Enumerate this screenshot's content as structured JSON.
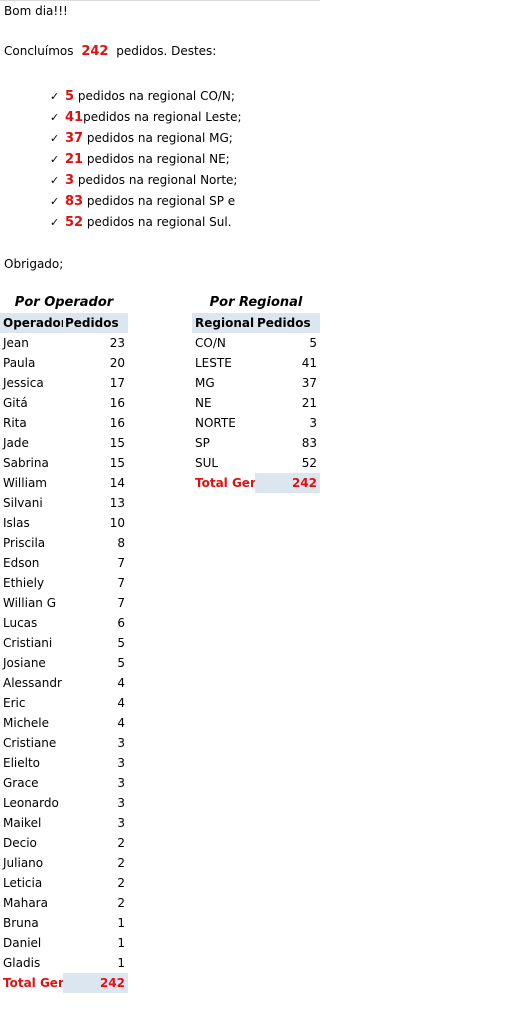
{
  "greeting": "Bom dia!!!",
  "summary": {
    "before": "Concluímos",
    "total": "242",
    "after": "pedidos. Destes:"
  },
  "bullets": [
    {
      "num": "5",
      "text": " pedidos na regional CO/N;"
    },
    {
      "num": "41",
      "text": "pedidos na regional Leste;"
    },
    {
      "num": "37",
      "text": " pedidos na regional MG;"
    },
    {
      "num": "21",
      "text": " pedidos na regional NE;"
    },
    {
      "num": "3",
      "text": " pedidos na regional Norte;"
    },
    {
      "num": "83",
      "text": " pedidos na regional SP e"
    },
    {
      "num": "52",
      "text": " pedidos na regional Sul."
    }
  ],
  "closing": "Obrigado;",
  "operator_table": {
    "title": "Por Operador",
    "headers": [
      "Operador",
      "Pedidos"
    ],
    "rows": [
      [
        "Jean",
        "23"
      ],
      [
        "Paula",
        "20"
      ],
      [
        "Jessica",
        "17"
      ],
      [
        "Gitá",
        "16"
      ],
      [
        "Rita",
        "16"
      ],
      [
        "Jade",
        "15"
      ],
      [
        "Sabrina",
        "15"
      ],
      [
        "William",
        "14"
      ],
      [
        "Silvani",
        "13"
      ],
      [
        "Islas",
        "10"
      ],
      [
        "Priscila",
        "8"
      ],
      [
        "Edson",
        "7"
      ],
      [
        "Ethiely",
        "7"
      ],
      [
        "Willian G",
        "7"
      ],
      [
        "Lucas",
        "6"
      ],
      [
        "Cristiani",
        "5"
      ],
      [
        "Josiane",
        "5"
      ],
      [
        "Alessandr",
        "4"
      ],
      [
        "Eric",
        "4"
      ],
      [
        "Michele",
        "4"
      ],
      [
        "Cristiane",
        "3"
      ],
      [
        "Elielto",
        "3"
      ],
      [
        "Grace",
        "3"
      ],
      [
        "Leonardo",
        "3"
      ],
      [
        "Maikel",
        "3"
      ],
      [
        "Decio",
        "2"
      ],
      [
        "Juliano",
        "2"
      ],
      [
        "Leticia",
        "2"
      ],
      [
        "Mahara",
        "2"
      ],
      [
        "Bruna",
        "1"
      ],
      [
        "Daniel",
        "1"
      ],
      [
        "Gladis",
        "1"
      ]
    ],
    "total_label": "Total Gera",
    "total_value": "242"
  },
  "regional_table": {
    "title": "Por Regional",
    "headers": [
      "Regional",
      "Pedidos"
    ],
    "rows": [
      [
        "CO/N",
        "5"
      ],
      [
        "LESTE",
        "41"
      ],
      [
        "MG",
        "37"
      ],
      [
        "NE",
        "21"
      ],
      [
        "NORTE",
        "3"
      ],
      [
        "SP",
        "83"
      ],
      [
        "SUL",
        "52"
      ]
    ],
    "total_label": "Total Gera",
    "total_value": "242"
  },
  "colors": {
    "accent_red": "#e01010",
    "header_fill": "#dce6f1"
  },
  "icons": {
    "bullet": "check-icon"
  }
}
